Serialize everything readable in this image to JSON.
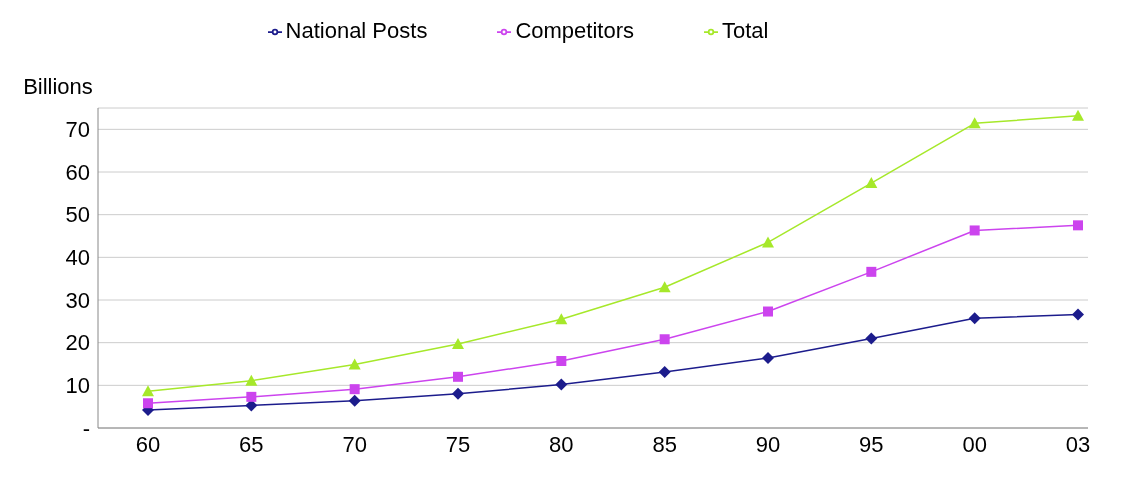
{
  "chart_data": {
    "type": "line",
    "ylabel": "Billions",
    "categories": [
      "60",
      "65",
      "70",
      "75",
      "80",
      "85",
      "90",
      "95",
      "00",
      "03"
    ],
    "series": [
      {
        "name": "National Posts",
        "color": "#1c1c8c",
        "marker": "diamond",
        "values": [
          4.2,
          5.3,
          6.4,
          8.0,
          10.2,
          13.1,
          16.4,
          21.0,
          25.7,
          26.6
        ]
      },
      {
        "name": "Competitors",
        "color": "#cc44ee",
        "marker": "square",
        "values": [
          5.8,
          7.3,
          9.1,
          12.0,
          15.7,
          20.8,
          27.3,
          36.6,
          46.3,
          47.5
        ]
      },
      {
        "name": "Total",
        "color": "#a6e82a",
        "marker": "triangle",
        "values": [
          8.6,
          11.1,
          14.9,
          19.7,
          25.5,
          33.0,
          43.5,
          57.4,
          71.4,
          73.2
        ]
      }
    ],
    "ylim": [
      0,
      75
    ],
    "yticks": [
      {
        "value": 0,
        "label": "-"
      },
      10,
      20,
      30,
      40,
      50,
      60,
      70
    ],
    "grid": "y",
    "legend": "top",
    "line_style": "solid"
  }
}
